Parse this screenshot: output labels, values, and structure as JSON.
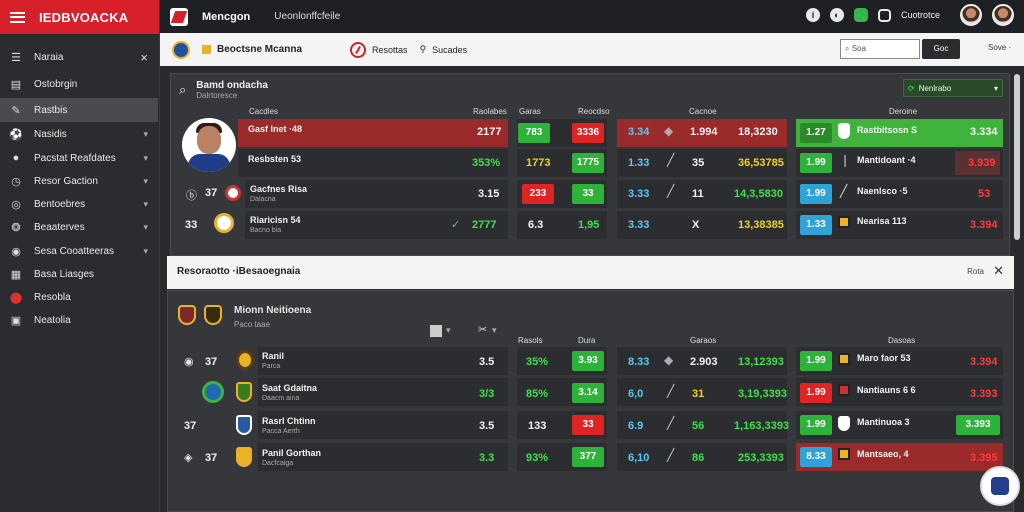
{
  "sidebar": {
    "brand": "IEDBVOACKA",
    "items": [
      {
        "label": "Naraia",
        "icon": "menu-icon"
      },
      {
        "label": "Ostobrgin",
        "icon": "list-icon"
      },
      {
        "label": "Rastbis",
        "icon": "edit-icon"
      },
      {
        "label": "Nasidis",
        "icon": "soccer-icon"
      },
      {
        "label": "Pacstat Reafdates",
        "icon": "soccer-icon"
      },
      {
        "label": "Resor Gaction",
        "icon": "clock-icon"
      },
      {
        "label": "Bentoebres",
        "icon": "football-icon"
      },
      {
        "label": "Beaaterves",
        "icon": "basket-icon"
      },
      {
        "label": "Sesa Cooatteeras",
        "icon": "tennis-icon"
      },
      {
        "label": "Basa Liasges",
        "icon": "chart-icon"
      },
      {
        "label": "Resobla",
        "icon": "red-badge-icon"
      },
      {
        "label": "Neatolia",
        "icon": "flag-icon"
      }
    ]
  },
  "topbar": {
    "title": "Mencgon",
    "subtitle": "Ueonlonffcfeile",
    "account": "Cuotrotce"
  },
  "subbar": {
    "name": "Beoctsne Mcanna",
    "link1": "Resottas",
    "link2": "Sucades",
    "search_placeholder": "Soa",
    "go": "Goc",
    "more": "Sove"
  },
  "panel1": {
    "title": "Bamd ondacha",
    "subtitle": "Dalrtoresce",
    "action": "Nenlrabo",
    "headers": [
      "Cacdles",
      "Raolabes",
      "Garas",
      "Reocdso",
      "Cacnoe",
      "Deroine"
    ],
    "rows": [
      {
        "num": "",
        "team": "Gasf Inet ·48",
        "sub": "",
        "odds": "2177",
        "a": "783",
        "b": "3336",
        "c": "3.34",
        "d": "1.994",
        "e": "18,3230",
        "f": "1.27",
        "g": "Rastbitsosn S",
        "h": "3.334"
      },
      {
        "num": "",
        "team": "Resbsten 53",
        "sub": "",
        "odds": "353%",
        "a": "1773",
        "b": "1775",
        "c": "1.33",
        "d": "35",
        "e": "36,53785",
        "f": "1.99",
        "g": "Mantidoant ·4",
        "h": "3.939"
      },
      {
        "num": "37",
        "team": "Gacfnes Risa",
        "sub": "Dalacna",
        "odds": "3.15",
        "a": "233",
        "b": "33",
        "c": "3.33",
        "d": "11",
        "e": "14,3,5830",
        "f": "1.99",
        "g": "Naenlsco ·5",
        "h": "53"
      },
      {
        "num": "33",
        "team": "Riaricisn 54",
        "sub": "Bacno bia",
        "odds": "2777",
        "a": "6.3",
        "b": "1,95",
        "c": "3.33",
        "d": "X",
        "e": "13,38385",
        "f": "1.33",
        "g": "Nearisa 113",
        "h": "3.394"
      }
    ]
  },
  "banner": {
    "title": "Resoraotto ·iBesaoegnaia",
    "link": "Rota"
  },
  "panel2": {
    "title": "Mionn Neitioena",
    "subtitle": "Paco taae",
    "headers": [
      "Rasols",
      "Dura",
      "Garaos",
      "Dasoas"
    ],
    "rows": [
      {
        "num": "37",
        "team": "Ranil",
        "sub": "Parca",
        "odds": "3.5",
        "a": "35%",
        "b": "3.93",
        "c": "8.33",
        "d": "2.903",
        "e": "13,12393",
        "f": "1.99",
        "g": "Maro faor 53",
        "h": "3.394"
      },
      {
        "num": "",
        "team": "Saat Gdaitna",
        "sub": "Daacm aina",
        "odds": "3/3",
        "a": "85%",
        "b": "3.14",
        "c": "6,0",
        "d": "31",
        "e": "3,19,3393",
        "f": "1.99",
        "g": "Nantiauns 6 6",
        "h": "3.393"
      },
      {
        "num": "37",
        "team": "Rasrl Chtinn",
        "sub": "Pacca Aerth",
        "odds": "3.5",
        "a": "133",
        "b": "33",
        "c": "6.9",
        "d": "56",
        "e": "1,163,3393",
        "f": "1.99",
        "g": "Mantinuoa 3",
        "h": "3.393"
      },
      {
        "num": "37",
        "team": "Panil Gorthan",
        "sub": "Dacfcaiga",
        "odds": "3.3",
        "a": "93%",
        "b": "377",
        "c": "6,10",
        "d": "86",
        "e": "253,3393",
        "f": "8.33",
        "g": "Mantsaeo, 4",
        "h": "3.395"
      }
    ]
  }
}
